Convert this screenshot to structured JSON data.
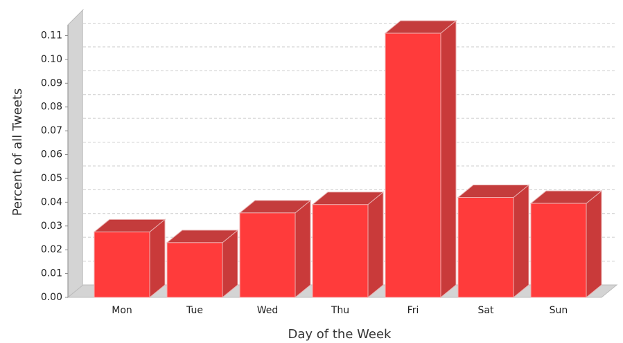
{
  "chart_data": {
    "type": "bar3d",
    "x_label": "Day of the Week",
    "y_label": "Percent of all Tweets",
    "categories": [
      "Mon",
      "Tue",
      "Wed",
      "Thu",
      "Fri",
      "Sat",
      "Sun"
    ],
    "values": [
      0.0275,
      0.023,
      0.0355,
      0.039,
      0.111,
      0.042,
      0.0395
    ],
    "color": "#ff3b3b",
    "ylim": [
      0,
      0.1145
    ],
    "yticks": [
      {
        "value": 0,
        "label": "0.00"
      },
      {
        "value": 0.01,
        "label": "0.01"
      },
      {
        "value": 0.02,
        "label": "0.02"
      },
      {
        "value": 0.03,
        "label": "0.03"
      },
      {
        "value": 0.04,
        "label": "0.04"
      },
      {
        "value": 0.05,
        "label": "0.05"
      },
      {
        "value": 0.06,
        "label": "0.06"
      },
      {
        "value": 0.07,
        "label": "0.07"
      },
      {
        "value": 0.08,
        "label": "0.08"
      },
      {
        "value": 0.09,
        "label": "0.09"
      },
      {
        "value": 0.1,
        "label": "0.10"
      },
      {
        "value": 0.11,
        "label": "0.11"
      }
    ],
    "grid": true
  }
}
